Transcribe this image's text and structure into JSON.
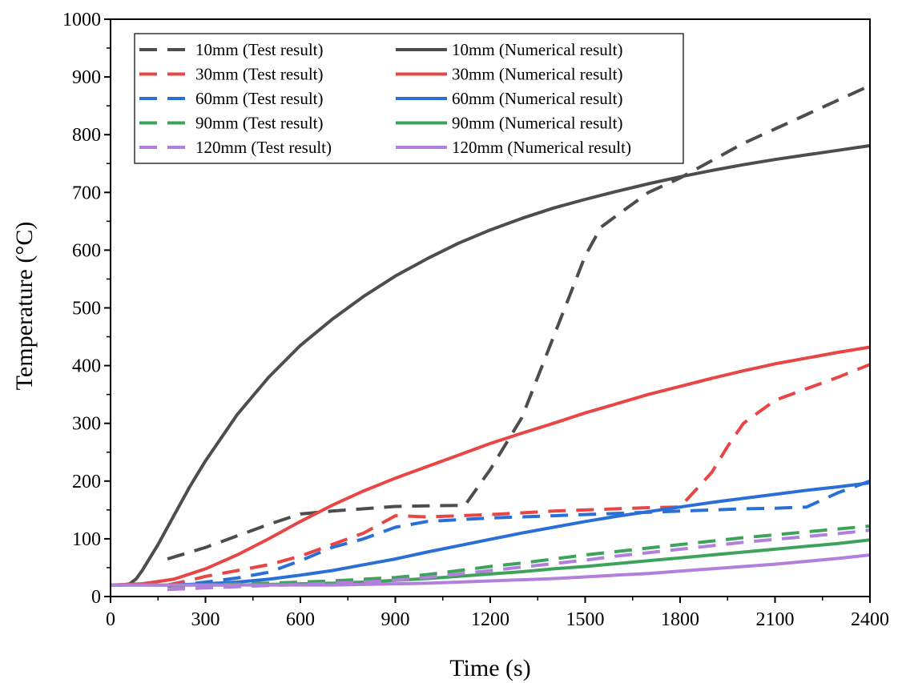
{
  "chart_data": {
    "type": "line",
    "title": "",
    "xlabel": "Time (s)",
    "ylabel": "Temperature (°C)",
    "xlim": [
      0,
      2400
    ],
    "ylim": [
      0,
      1000
    ],
    "xticks": [
      0,
      300,
      600,
      900,
      1200,
      1500,
      1800,
      2100,
      2400
    ],
    "yticks": [
      0,
      100,
      200,
      300,
      400,
      500,
      600,
      700,
      800,
      900,
      1000
    ],
    "grid": false,
    "legend_position": "top-left",
    "series": [
      {
        "name": "10mm (Test result)",
        "style": "dashed",
        "color": "#4d4d4d",
        "x": [
          180,
          300,
          400,
          500,
          600,
          700,
          800,
          900,
          1000,
          1120,
          1200,
          1300,
          1400,
          1450,
          1500,
          1550,
          1600,
          1700,
          1800,
          1900,
          2000,
          2100,
          2200,
          2300,
          2400
        ],
        "y": [
          65,
          85,
          105,
          125,
          143,
          148,
          152,
          156,
          157,
          158,
          220,
          310,
          450,
          520,
          590,
          640,
          660,
          700,
          725,
          755,
          785,
          810,
          835,
          860,
          885
        ]
      },
      {
        "name": "10mm (Numerical result)",
        "style": "solid",
        "color": "#4d4d4d",
        "x": [
          0,
          40,
          60,
          80,
          100,
          150,
          200,
          250,
          300,
          400,
          500,
          600,
          700,
          800,
          900,
          1000,
          1100,
          1200,
          1300,
          1400,
          1500,
          1600,
          1700,
          1800,
          1900,
          2000,
          2100,
          2200,
          2300,
          2400
        ],
        "y": [
          20,
          20,
          22,
          30,
          45,
          90,
          140,
          190,
          235,
          315,
          380,
          435,
          480,
          520,
          555,
          585,
          612,
          635,
          655,
          673,
          688,
          702,
          715,
          727,
          738,
          748,
          757,
          765,
          773,
          781
        ]
      },
      {
        "name": "30mm (Test result)",
        "style": "dashed",
        "color": "#e84545",
        "x": [
          180,
          250,
          300,
          400,
          500,
          600,
          700,
          800,
          900,
          1000,
          1100,
          1200,
          1300,
          1400,
          1500,
          1600,
          1700,
          1800,
          1900,
          1950,
          2000,
          2050,
          2100,
          2200,
          2300,
          2400
        ],
        "y": [
          20,
          28,
          35,
          45,
          55,
          70,
          90,
          110,
          140,
          138,
          140,
          142,
          145,
          148,
          150,
          152,
          154,
          155,
          215,
          260,
          300,
          320,
          340,
          360,
          380,
          402
        ]
      },
      {
        "name": "30mm (Numerical result)",
        "style": "solid",
        "color": "#e84545",
        "x": [
          0,
          100,
          200,
          300,
          400,
          500,
          600,
          700,
          800,
          900,
          1000,
          1100,
          1200,
          1300,
          1400,
          1500,
          1600,
          1700,
          1800,
          1900,
          2000,
          2100,
          2200,
          2300,
          2400
        ],
        "y": [
          20,
          22,
          30,
          48,
          72,
          100,
          130,
          158,
          183,
          205,
          225,
          245,
          265,
          283,
          300,
          318,
          334,
          350,
          364,
          378,
          391,
          403,
          413,
          423,
          432
        ]
      },
      {
        "name": "60mm (Test result)",
        "style": "dashed",
        "color": "#2a6fd6",
        "x": [
          180,
          300,
          400,
          500,
          600,
          700,
          800,
          900,
          1000,
          1100,
          1200,
          1300,
          1400,
          1500,
          1600,
          1700,
          1800,
          1900,
          2000,
          2100,
          2200,
          2300,
          2400
        ],
        "y": [
          18,
          25,
          32,
          42,
          62,
          85,
          100,
          120,
          130,
          133,
          136,
          138,
          140,
          142,
          144,
          146,
          148,
          150,
          152,
          153,
          155,
          180,
          200
        ]
      },
      {
        "name": "60mm (Numerical result)",
        "style": "solid",
        "color": "#2a6fd6",
        "x": [
          0,
          200,
          300,
          400,
          500,
          600,
          700,
          800,
          900,
          1000,
          1100,
          1200,
          1300,
          1400,
          1500,
          1600,
          1700,
          1800,
          1900,
          2000,
          2100,
          2200,
          2300,
          2400
        ],
        "y": [
          20,
          20,
          22,
          25,
          30,
          37,
          45,
          55,
          65,
          77,
          88,
          99,
          110,
          120,
          130,
          139,
          147,
          155,
          163,
          170,
          177,
          184,
          190,
          197
        ]
      },
      {
        "name": "90mm (Test result)",
        "style": "dashed",
        "color": "#3da35a",
        "x": [
          180,
          300,
          400,
          500,
          600,
          700,
          800,
          900,
          1000,
          1100,
          1200,
          1300,
          1400,
          1500,
          1600,
          1700,
          1800,
          1900,
          2000,
          2100,
          2200,
          2300,
          2400
        ],
        "y": [
          18,
          20,
          22,
          23,
          25,
          27,
          30,
          33,
          38,
          45,
          52,
          58,
          65,
          72,
          78,
          84,
          90,
          96,
          102,
          107,
          112,
          117,
          122
        ]
      },
      {
        "name": "90mm (Numerical result)",
        "style": "solid",
        "color": "#3da35a",
        "x": [
          0,
          300,
          400,
          500,
          600,
          700,
          800,
          900,
          1000,
          1100,
          1200,
          1300,
          1400,
          1500,
          1600,
          1700,
          1800,
          1900,
          2000,
          2100,
          2200,
          2300,
          2400
        ],
        "y": [
          20,
          20,
          20,
          21,
          22,
          23,
          25,
          28,
          31,
          35,
          39,
          43,
          48,
          52,
          57,
          62,
          67,
          72,
          77,
          82,
          87,
          92,
          98
        ]
      },
      {
        "name": "120mm (Test result)",
        "style": "dashed",
        "color": "#b27fdc",
        "x": [
          180,
          300,
          400,
          500,
          600,
          700,
          800,
          900,
          1000,
          1100,
          1200,
          1300,
          1400,
          1500,
          1600,
          1700,
          1800,
          1900,
          2000,
          2100,
          2200,
          2300,
          2400
        ],
        "y": [
          12,
          15,
          17,
          19,
          21,
          23,
          25,
          28,
          33,
          39,
          45,
          51,
          57,
          63,
          70,
          76,
          82,
          88,
          94,
          99,
          104,
          109,
          115
        ]
      },
      {
        "name": "120mm (Numerical result)",
        "style": "solid",
        "color": "#b27fdc",
        "x": [
          0,
          400,
          600,
          700,
          800,
          900,
          1000,
          1100,
          1200,
          1300,
          1400,
          1500,
          1600,
          1700,
          1800,
          1900,
          2000,
          2100,
          2200,
          2300,
          2400
        ],
        "y": [
          20,
          20,
          20,
          20,
          21,
          22,
          23,
          25,
          27,
          29,
          31,
          34,
          37,
          40,
          44,
          48,
          52,
          56,
          61,
          66,
          72
        ]
      }
    ]
  }
}
